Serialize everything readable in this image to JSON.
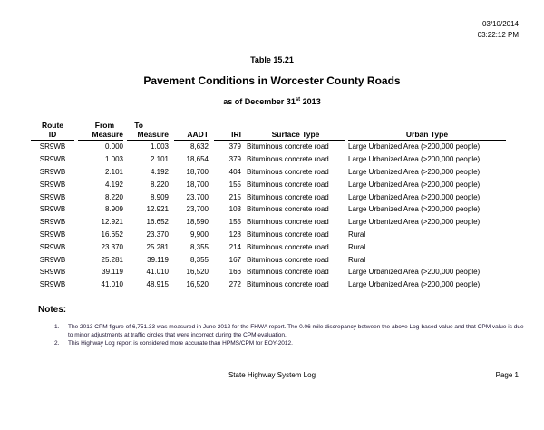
{
  "header": {
    "date": "03/10/2014",
    "time": "03:22:12 PM"
  },
  "table_label": "Table 15.21",
  "title": "Pavement Conditions in Worcester County Roads",
  "subtitle_prefix": "as of December 31",
  "subtitle_sup": "st",
  "subtitle_suffix": " 2013",
  "columns": {
    "route": [
      "Route",
      "ID"
    ],
    "from": [
      "From",
      "Measure"
    ],
    "to": [
      "To",
      "Measure"
    ],
    "aadt": "AADT",
    "iri": "IRI",
    "surface": "Surface Type",
    "urban": "Urban  Type"
  },
  "rows": [
    [
      "SR9WB",
      "0.000",
      "1.003",
      "8,632",
      "379",
      "Bituminous concrete road",
      "Large Urbanized Area (>200,000 people)"
    ],
    [
      "SR9WB",
      "1.003",
      "2.101",
      "18,654",
      "379",
      "Bituminous concrete road",
      "Large Urbanized Area (>200,000 people)"
    ],
    [
      "SR9WB",
      "2.101",
      "4.192",
      "18,700",
      "404",
      "Bituminous concrete road",
      "Large Urbanized Area (>200,000 people)"
    ],
    [
      "SR9WB",
      "4.192",
      "8.220",
      "18,700",
      "155",
      "Bituminous concrete road",
      "Large Urbanized Area (>200,000 people)"
    ],
    [
      "SR9WB",
      "8.220",
      "8.909",
      "23,700",
      "215",
      "Bituminous concrete road",
      "Large Urbanized Area (>200,000 people)"
    ],
    [
      "SR9WB",
      "8.909",
      "12.921",
      "23,700",
      "103",
      "Bituminous concrete road",
      "Large Urbanized Area (>200,000 people)"
    ],
    [
      "SR9WB",
      "12.921",
      "16.652",
      "18,590",
      "155",
      "Bituminous concrete road",
      "Large Urbanized Area (>200,000 people)"
    ],
    [
      "SR9WB",
      "16.652",
      "23.370",
      "9,900",
      "128",
      "Bituminous concrete road",
      "Rural"
    ],
    [
      "SR9WB",
      "23.370",
      "25.281",
      "8,355",
      "214",
      "Bituminous concrete road",
      "Rural"
    ],
    [
      "SR9WB",
      "25.281",
      "39.119",
      "8,355",
      "167",
      "Bituminous concrete road",
      "Rural"
    ],
    [
      "SR9WB",
      "39.119",
      "41.010",
      "16,520",
      "166",
      "Bituminous concrete road",
      "Large Urbanized Area (>200,000 people)"
    ],
    [
      "SR9WB",
      "41.010",
      "48.915",
      "16,520",
      "272",
      "Bituminous concrete road",
      "Large Urbanized Area (>200,000 people)"
    ]
  ],
  "notes": {
    "heading": "Notes:",
    "items": [
      {
        "num": "1.",
        "text": "The 2013 CPM figure of 6,751.33 was measured in June 2012 for the FHWA report. The 0.06 mile discrepancy between the above Log-based value and that CPM value is due to minor  adjustments at traffic circles that were incorrect during the CPM evaluation."
      },
      {
        "num": "2.",
        "text": "This Highway Log report is considered more accurate than HPMS/CPM for EOY-2012."
      }
    ]
  },
  "footer": {
    "center": "State Highway System Log",
    "page": "Page 1"
  }
}
